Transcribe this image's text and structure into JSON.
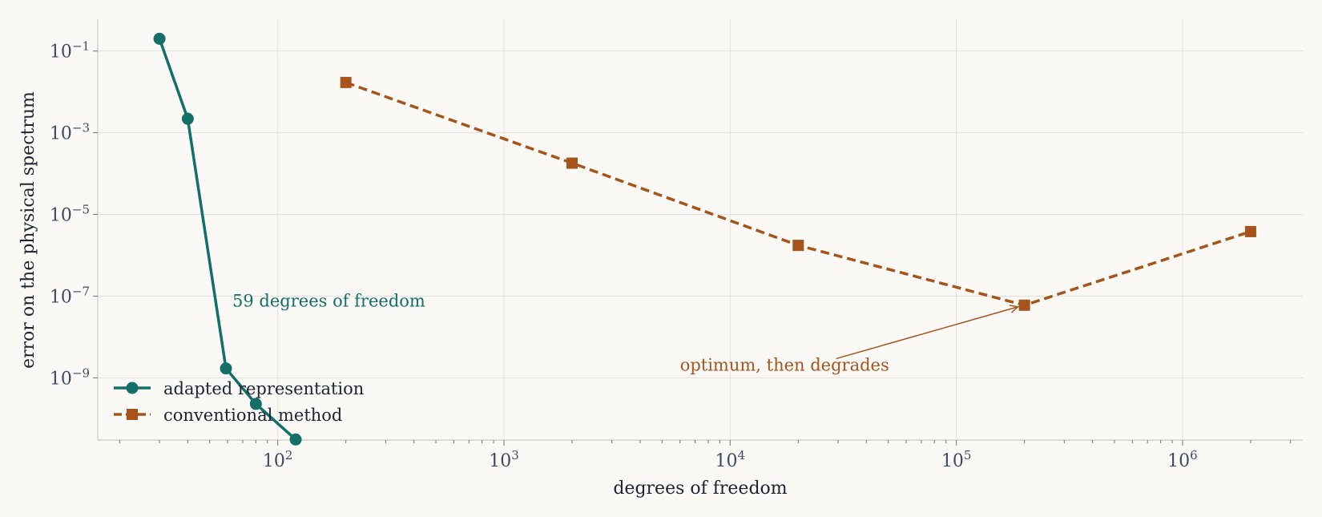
{
  "chart_data": {
    "type": "line",
    "xlabel": "degrees of freedom",
    "ylabel": "error on the physical spectrum",
    "xscale": "log",
    "yscale": "log",
    "xlim": [
      16,
      3400000
    ],
    "ylim": [
      3e-11,
      0.6
    ],
    "grid": true,
    "legend_position": "lower-left",
    "x_ticks": [
      {
        "value": 100,
        "base": "10",
        "exp": "2"
      },
      {
        "value": 1000,
        "base": "10",
        "exp": "3"
      },
      {
        "value": 10000,
        "base": "10",
        "exp": "4"
      },
      {
        "value": 100000,
        "base": "10",
        "exp": "5"
      },
      {
        "value": 1000000,
        "base": "10",
        "exp": "6"
      }
    ],
    "y_ticks": [
      {
        "value": 0.1,
        "base": "10",
        "exp": "−1"
      },
      {
        "value": 0.001,
        "base": "10",
        "exp": "−3"
      },
      {
        "value": 1e-05,
        "base": "10",
        "exp": "−5"
      },
      {
        "value": 1e-07,
        "base": "10",
        "exp": "−7"
      },
      {
        "value": 1e-09,
        "base": "10",
        "exp": "−9"
      }
    ],
    "series": [
      {
        "name": "adapted representation",
        "color": "#136f68",
        "marker": "circle",
        "linestyle": "solid",
        "x": [
          30,
          40,
          59,
          80,
          120
        ],
        "y": [
          0.2,
          0.0022,
          1.7e-09,
          2.3e-10,
          3.1e-11
        ]
      },
      {
        "name": "conventional method",
        "color": "#a6541c",
        "marker": "square",
        "linestyle": "dashed",
        "x": [
          200,
          2000,
          20000,
          200000,
          2000000
        ],
        "y": [
          0.017,
          0.00018,
          1.75e-06,
          6e-08,
          3.8e-06
        ]
      }
    ],
    "annotations": [
      {
        "text": "59 degrees of freedom",
        "color": "#136f68",
        "x": 63,
        "y": 5.5e-08
      },
      {
        "text": "optimum, then degrades",
        "color": "#a6541c",
        "x": 6000,
        "y": 1.5e-09,
        "arrow_to": {
          "x": 200000,
          "y": 6e-08
        }
      }
    ]
  }
}
